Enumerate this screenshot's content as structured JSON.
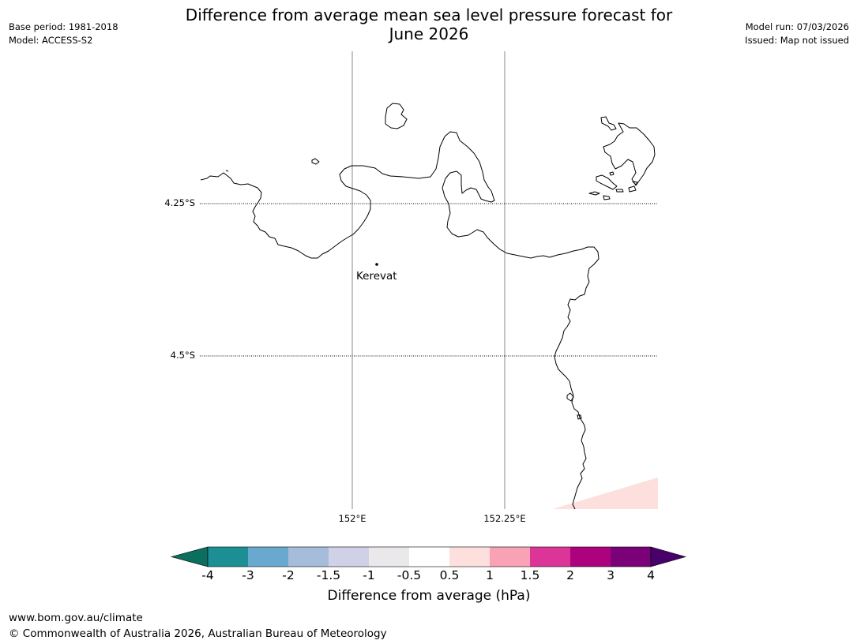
{
  "header": {
    "title_line1": "Difference from average mean sea level pressure forecast for",
    "title_line2": "June 2026",
    "base_period": "Base period: 1981-2018",
    "model": "Model: ACCESS-S2",
    "model_run": "Model run: 07/03/2026",
    "issued": "Issued: Map not issued"
  },
  "map": {
    "lat_labels": [
      "4.25°S",
      "4.5°S"
    ],
    "lon_labels": [
      "152°E",
      "152.25°E"
    ],
    "place": "Kerevat"
  },
  "colorbar": {
    "label": "Difference from average (hPa)",
    "ticks": [
      "-4",
      "-3",
      "-2",
      "-1.5",
      "-1",
      "-0.5",
      "0.5",
      "1",
      "1.5",
      "2",
      "3",
      "4"
    ],
    "colors": {
      "under": "#0c6e5e",
      "bins": [
        "#1b8f94",
        "#69a8cf",
        "#a6bcdb",
        "#d0d1e6",
        "#ebe8ec",
        "#ffffff",
        "#fde0dd",
        "#f9a1b5",
        "#dd3497",
        "#ae017e",
        "#7a0177"
      ],
      "over": "#49006a"
    }
  },
  "footer": {
    "url": "www.bom.gov.au/climate",
    "copyright": "© Commonwealth of Australia 2026, Australian Bureau of Meteorology"
  }
}
